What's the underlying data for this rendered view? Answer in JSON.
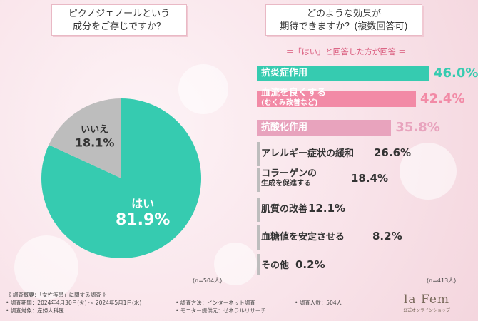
{
  "left_question": [
    "ピクノジェノールという",
    "成分をご存じですか？"
  ],
  "right_question": [
    "どのような効果が",
    "期待できますか？(複数回答可)"
  ],
  "right_subtitle": "＝「はい」と回答した方が回答 ＝",
  "left_n": "(n=504人)",
  "right_n": "(n=413人)",
  "footer": {
    "col1": [
      "《 調査概要：「女性疾患」に関する調査 》",
      "• 調査期間：2024年4月30日(火) ～ 2024年5月1日(水)",
      "• 調査対象：産婦人科医"
    ],
    "col2": [
      "• 調査方法：インターネット調査",
      "• モニター提供元：ゼネラルリサーチ"
    ],
    "col3": [
      "• 調査人数：504人"
    ]
  },
  "logo": {
    "main": "la Fem",
    "sub": "公式オンラインショップ"
  },
  "colors": {
    "teal": "#36cbb0",
    "pink": "#f28aa6",
    "light_pink": "#e8a3bd",
    "gray": "#bdbdbd"
  },
  "chart_data": [
    {
      "type": "pie",
      "slices": [
        {
          "label": "はい",
          "value": 81.9,
          "display": "81.9%"
        },
        {
          "label": "いいえ",
          "value": 18.1,
          "display": "18.1%"
        }
      ]
    },
    {
      "type": "bar",
      "categories": [
        "抗炎症作用",
        "血流を良くする\n(むくみ改善など)",
        "抗酸化作用",
        "アレルギー症状の緩和",
        "コラーゲンの\n生成を促進する",
        "肌質の改善",
        "血糖値を安定させる",
        "その他"
      ],
      "values": [
        46.0,
        42.4,
        35.8,
        26.6,
        18.4,
        12.1,
        8.2,
        0.2
      ],
      "display": [
        "46.0%",
        "42.4%",
        "35.8%",
        "26.6%",
        "18.4%",
        "12.1%",
        "8.2%",
        "0.2%"
      ]
    }
  ]
}
